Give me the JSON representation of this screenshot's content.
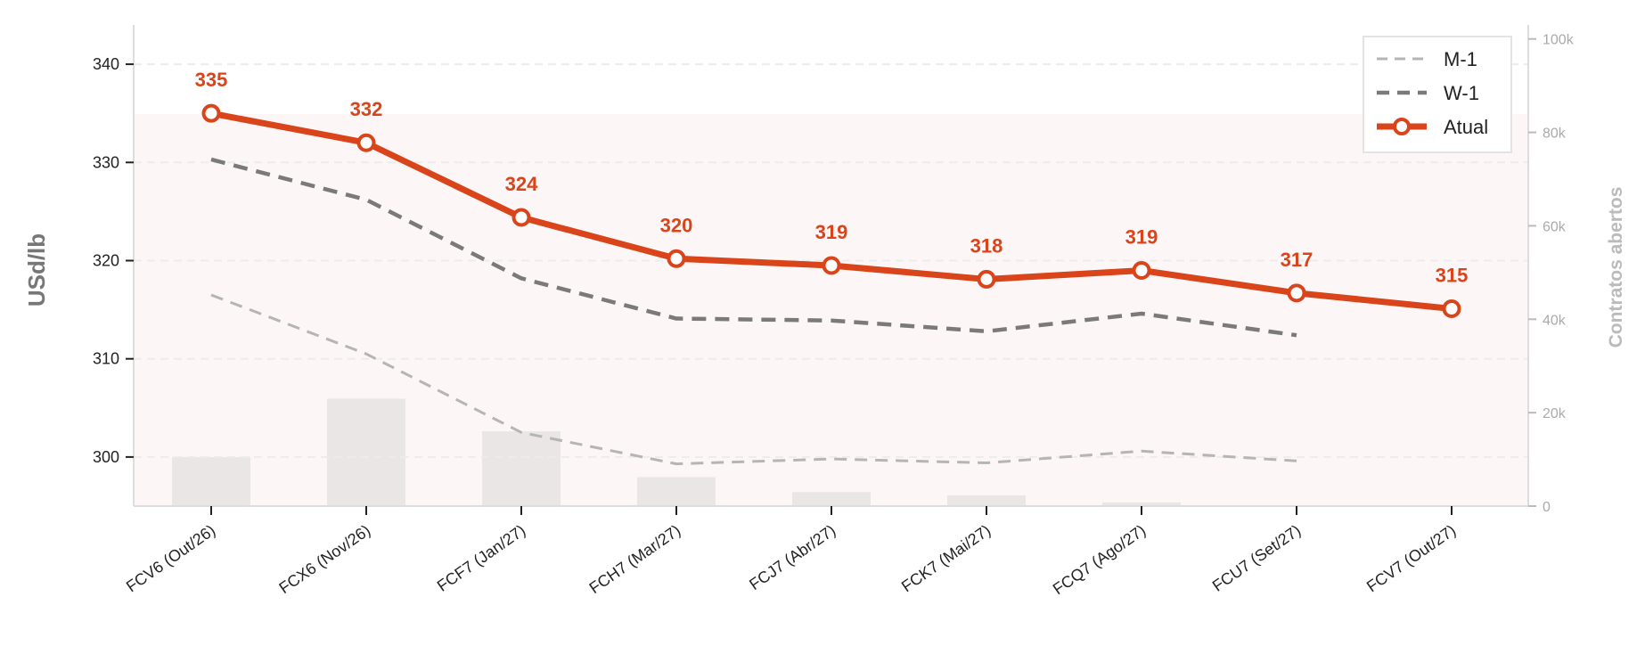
{
  "chart_data": {
    "type": "line",
    "title": "",
    "xlabel": "",
    "ylabel": "USd/lb",
    "y2label": "Contratos abertos",
    "categories": [
      "FCV6 (Out/26)",
      "FCX6 (Nov/26)",
      "FCF7 (Jan/27)",
      "FCH7 (Mar/27)",
      "FCJ7 (Abr/27)",
      "FCK7 (Mai/27)",
      "FCQ7 (Ago/27)",
      "FCU7 (Set/27)",
      "FCV7 (Out/27)"
    ],
    "ylim": [
      295,
      344
    ],
    "yticks": [
      300,
      310,
      320,
      330,
      340
    ],
    "y2lim": [
      0,
      103000
    ],
    "y2ticks": [
      0,
      20000,
      40000,
      60000,
      80000,
      100000
    ],
    "y2ticklabels": [
      "0",
      "20k",
      "40k",
      "60k",
      "80k",
      "100k"
    ],
    "grid": "horizontal dashed",
    "legend_position": "top-right",
    "series": [
      {
        "name": "M-1",
        "axis": "left",
        "style": "dashed-light",
        "color": "#b5b5b5",
        "values": [
          316.5,
          310.5,
          302.5,
          299.3,
          299.8,
          299.4,
          300.6,
          299.6,
          null
        ]
      },
      {
        "name": "W-1",
        "axis": "left",
        "style": "dashed-dark",
        "color": "#7a7a7a",
        "values": [
          330.3,
          326.2,
          318.2,
          314.1,
          313.9,
          312.8,
          314.6,
          312.4,
          null
        ]
      },
      {
        "name": "Atual",
        "axis": "left",
        "style": "solid-markers",
        "color": "#d9441a",
        "values": [
          335.0,
          332.0,
          324.4,
          320.2,
          319.5,
          318.1,
          319.0,
          316.7,
          315.1
        ],
        "labels": [
          "335",
          "332",
          "324",
          "320",
          "319",
          "318",
          "319",
          "317",
          "315"
        ]
      }
    ],
    "bars": {
      "axis": "right",
      "color": "#e9e6e5",
      "values": [
        10500,
        23000,
        16000,
        6200,
        3000,
        2300,
        800,
        0,
        0
      ]
    },
    "shaded_area": {
      "color": "#fcf7f6"
    }
  }
}
